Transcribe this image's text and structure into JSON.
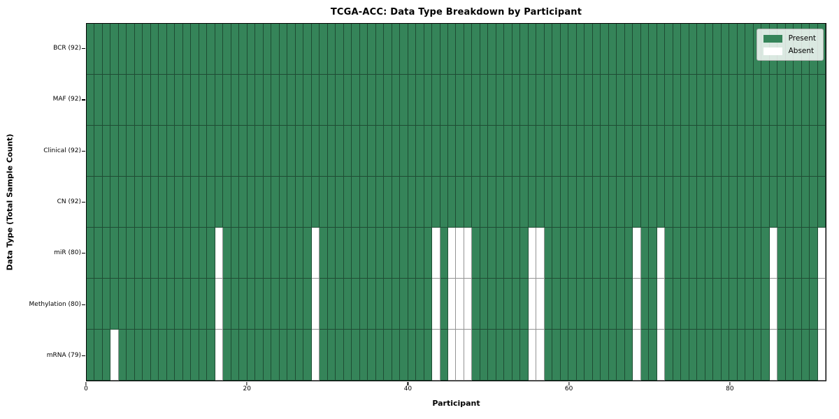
{
  "figure": {
    "title": "TCGA-ACC: Data Type Breakdown by Participant"
  },
  "chart_data": {
    "type": "heatmap",
    "title": "TCGA-ACC: Data Type Breakdown by Participant",
    "xlabel": "Participant",
    "ylabel": "Data Type (Total Sample Count)",
    "x_ticks": [
      0,
      20,
      40,
      60,
      80
    ],
    "x_range": [
      0,
      92
    ],
    "n_participants": 92,
    "grid_lines": "cell borders on",
    "colors": {
      "present": "#358459",
      "absent": "#ffffff",
      "cell_border": "rgba(0,0,0,0.42)",
      "axis_spine": "#000000"
    },
    "legend": {
      "position": "upper right",
      "entries": [
        {
          "label": "Present",
          "color": "#358459"
        },
        {
          "label": "Absent",
          "color": "#ffffff"
        }
      ]
    },
    "rows": [
      {
        "label": "BCR (92)",
        "total": 92,
        "absent_participants": []
      },
      {
        "label": "MAF (92)",
        "total": 92,
        "absent_participants": []
      },
      {
        "label": "Clinical (92)",
        "total": 92,
        "absent_participants": []
      },
      {
        "label": "CN (92)",
        "total": 92,
        "absent_participants": []
      },
      {
        "label": "miR (80)",
        "total": 80,
        "absent_participants": [
          16,
          28,
          43,
          45,
          46,
          47,
          55,
          56,
          68,
          71,
          85,
          91
        ]
      },
      {
        "label": "Methylation (80)",
        "total": 80,
        "absent_participants": [
          16,
          28,
          43,
          45,
          46,
          47,
          55,
          56,
          68,
          71,
          85,
          91
        ]
      },
      {
        "label": "mRNA (79)",
        "total": 79,
        "absent_participants": [
          3,
          16,
          28,
          43,
          45,
          46,
          47,
          55,
          56,
          68,
          71,
          85,
          91
        ]
      }
    ]
  }
}
